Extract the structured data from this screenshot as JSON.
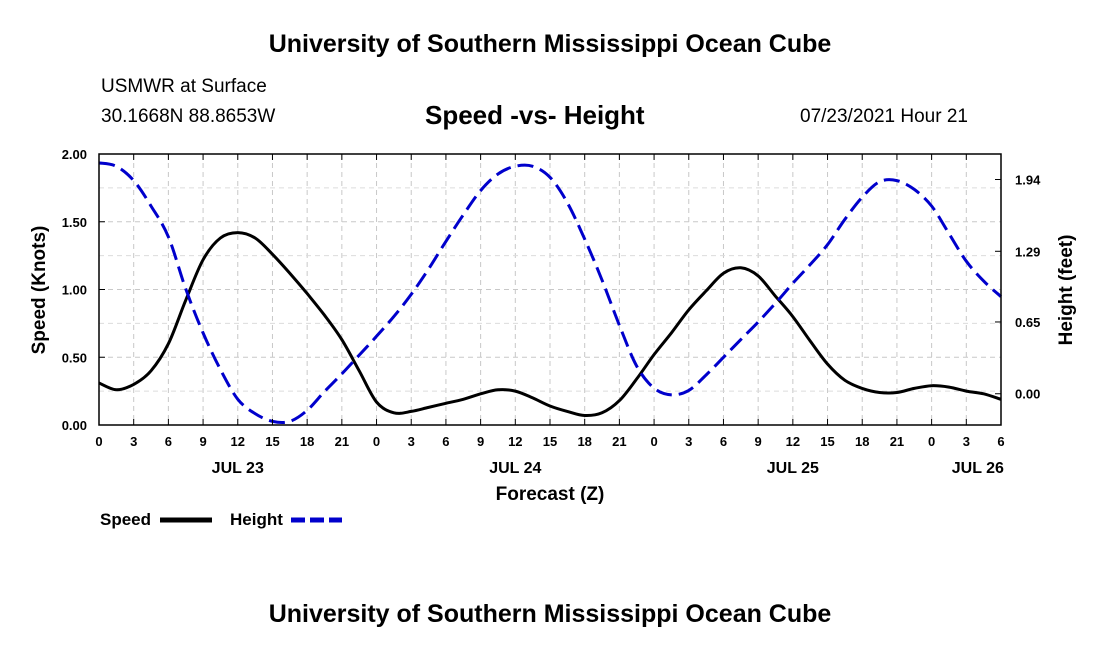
{
  "header": {
    "top_title": "University of Southern Mississippi Ocean Cube",
    "station_name": "USMWR at Surface",
    "coordinates": "30.1668N  88.8653W",
    "chart_title": "Speed -vs- Height",
    "datetime": "07/23/2021 Hour 21"
  },
  "footer": {
    "bottom_title": "University of Southern Mississippi Ocean Cube"
  },
  "chart_data": {
    "type": "line",
    "title": "Speed -vs- Height",
    "xlabel": "Forecast (Z)",
    "ylabel": "Speed (Knots)",
    "y2label": "Height (feet)",
    "x_unit": "hours since 07/23 00Z",
    "xlim": [
      0,
      78
    ],
    "ylim": [
      0,
      2.0
    ],
    "y2lim": [
      -0.283,
      2.171
    ],
    "x_tick_values": [
      0,
      3,
      6,
      9,
      12,
      15,
      18,
      21,
      24,
      27,
      30,
      33,
      36,
      39,
      42,
      45,
      48,
      51,
      54,
      57,
      60,
      63,
      66,
      69,
      72,
      75,
      78
    ],
    "x_tick_labels": [
      "0",
      "3",
      "6",
      "9",
      "12",
      "15",
      "18",
      "21",
      "0",
      "3",
      "6",
      "9",
      "12",
      "15",
      "18",
      "21",
      "0",
      "3",
      "6",
      "9",
      "12",
      "15",
      "18",
      "21",
      "0",
      "3",
      "6"
    ],
    "date_labels": [
      {
        "x": 12,
        "label": "JUL 23"
      },
      {
        "x": 36,
        "label": "JUL 24"
      },
      {
        "x": 60,
        "label": "JUL 25"
      },
      {
        "x": 76,
        "label": "JUL 26"
      }
    ],
    "y_ticks": [
      0.0,
      0.5,
      1.0,
      1.5,
      2.0
    ],
    "y_tick_labels": [
      "0.00",
      "0.50",
      "1.00",
      "1.50",
      "2.00"
    ],
    "y2_ticks": [
      0.0,
      0.65,
      1.29,
      1.94
    ],
    "y2_tick_labels": [
      "0.00",
      "0.65",
      "1.29",
      "1.94"
    ],
    "grid": true,
    "legend_position": "bottom-left",
    "series": [
      {
        "name": "Speed",
        "axis": "left",
        "color": "#000000",
        "style": "solid",
        "x": [
          0,
          1.5,
          3,
          4.5,
          6,
          7.5,
          9,
          10.5,
          12,
          13.5,
          15,
          16.5,
          18,
          19.5,
          21,
          22.5,
          24,
          25.5,
          27,
          28.5,
          30,
          31.5,
          33,
          34.5,
          36,
          37.5,
          39,
          40.5,
          42,
          43.5,
          45,
          46.5,
          48,
          49.5,
          51,
          52.5,
          54,
          55.5,
          57,
          58.5,
          60,
          61.5,
          63,
          64.5,
          66,
          67.5,
          69,
          70.5,
          72,
          73.5,
          75,
          76.5,
          78
        ],
        "values": [
          0.31,
          0.26,
          0.3,
          0.4,
          0.6,
          0.92,
          1.22,
          1.38,
          1.42,
          1.38,
          1.26,
          1.12,
          0.97,
          0.81,
          0.63,
          0.4,
          0.17,
          0.09,
          0.1,
          0.13,
          0.16,
          0.19,
          0.23,
          0.26,
          0.25,
          0.2,
          0.14,
          0.1,
          0.07,
          0.09,
          0.18,
          0.34,
          0.52,
          0.68,
          0.85,
          0.99,
          1.12,
          1.16,
          1.1,
          0.95,
          0.8,
          0.62,
          0.45,
          0.33,
          0.27,
          0.24,
          0.24,
          0.27,
          0.29,
          0.28,
          0.25,
          0.23,
          0.19
        ]
      },
      {
        "name": "Height",
        "axis": "right",
        "color": "#0000cc",
        "style": "dashed",
        "x": [
          0,
          1.5,
          3,
          4.5,
          6,
          7.5,
          9,
          10.5,
          12,
          13.5,
          15,
          16.5,
          18,
          19.5,
          21,
          22.5,
          24,
          25.5,
          27,
          28.5,
          30,
          31.5,
          33,
          34.5,
          36,
          37.5,
          39,
          40.5,
          42,
          43.5,
          45,
          46.5,
          48,
          49.5,
          51,
          52.5,
          54,
          55.5,
          57,
          58.5,
          60,
          61.5,
          63,
          64.5,
          66,
          67.5,
          69,
          70.5,
          72,
          73.5,
          75,
          76.5,
          78
        ],
        "values": [
          2.09,
          2.06,
          1.93,
          1.7,
          1.42,
          0.95,
          0.55,
          0.22,
          -0.05,
          -0.18,
          -0.25,
          -0.25,
          -0.15,
          0.02,
          0.18,
          0.35,
          0.52,
          0.7,
          0.9,
          1.13,
          1.38,
          1.62,
          1.84,
          1.99,
          2.06,
          2.06,
          1.96,
          1.73,
          1.4,
          1.03,
          0.62,
          0.25,
          0.05,
          -0.01,
          0.03,
          0.17,
          0.33,
          0.49,
          0.65,
          0.82,
          1.0,
          1.17,
          1.35,
          1.58,
          1.78,
          1.92,
          1.93,
          1.85,
          1.7,
          1.45,
          1.2,
          1.02,
          0.88
        ]
      }
    ]
  }
}
